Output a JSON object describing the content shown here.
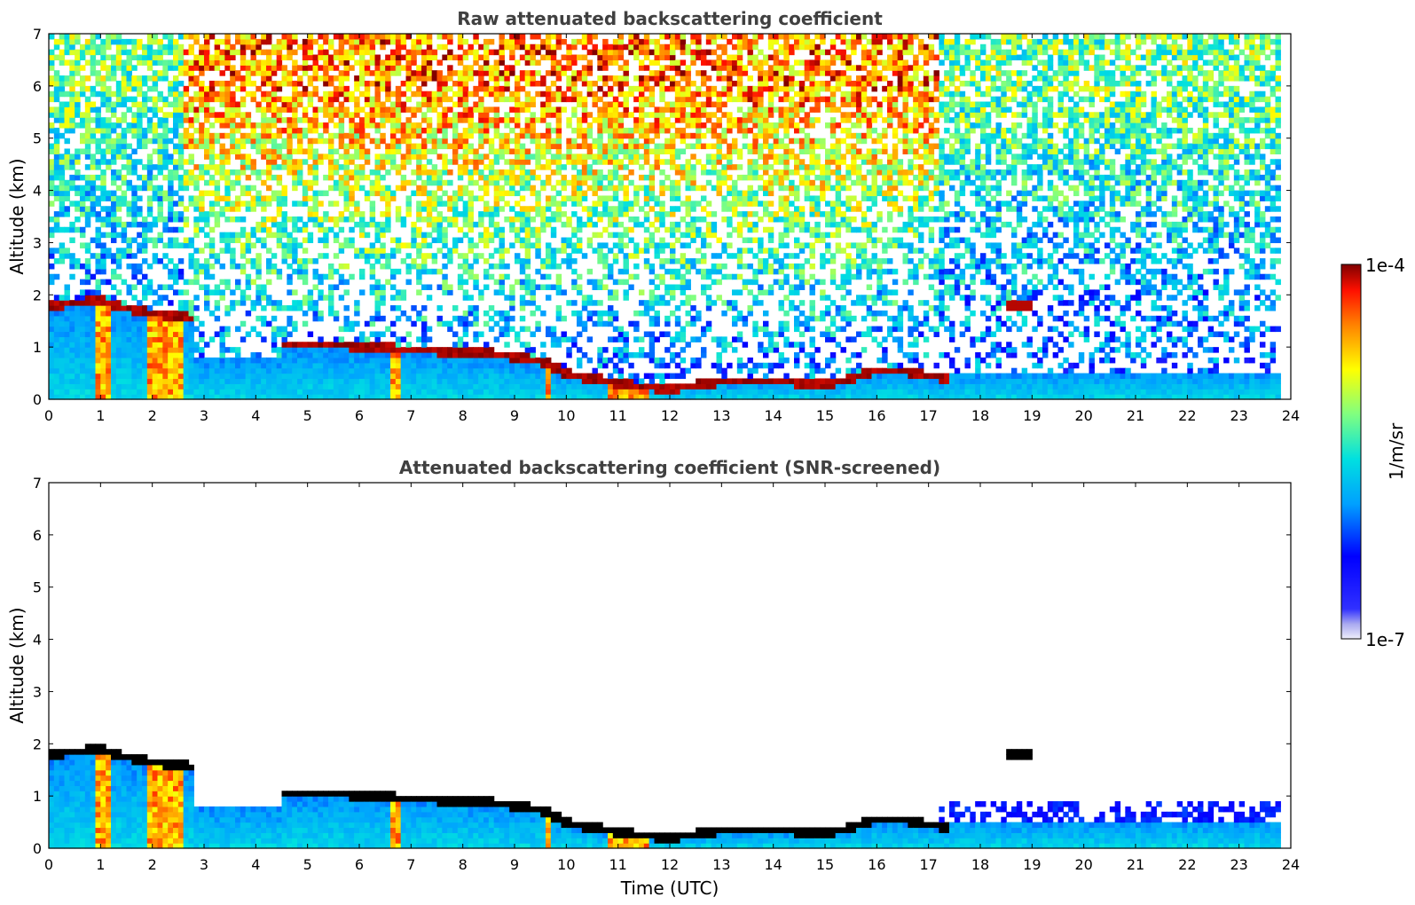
{
  "chart_data": [
    {
      "type": "heatmap",
      "title": "Raw attenuated backscattering coefficient",
      "xlabel": "",
      "ylabel": "Altitude (km)",
      "xlim": [
        0,
        24
      ],
      "ylim": [
        0,
        7
      ],
      "xticks": [
        "0",
        "1",
        "2",
        "3",
        "4",
        "5",
        "6",
        "7",
        "8",
        "9",
        "10",
        "11",
        "12",
        "13",
        "14",
        "15",
        "16",
        "17",
        "18",
        "19",
        "20",
        "21",
        "22",
        "23",
        "24"
      ],
      "yticks": [
        "0",
        "1",
        "2",
        "3",
        "4",
        "5",
        "6",
        "7"
      ],
      "data_end_time": 23.8,
      "cloud_layer": [
        [
          0,
          1.8
        ],
        [
          1.0,
          1.9
        ],
        [
          1.5,
          1.75
        ],
        [
          2.0,
          1.65
        ],
        [
          2.5,
          1.6
        ],
        [
          2.8,
          1.55
        ],
        [
          4.5,
          1.05
        ],
        [
          5.5,
          1.05
        ],
        [
          6.5,
          0.98
        ],
        [
          7.5,
          0.93
        ],
        [
          8.5,
          0.88
        ],
        [
          9.5,
          0.75
        ],
        [
          10.0,
          0.5
        ],
        [
          11.0,
          0.3
        ],
        [
          12.0,
          0.2
        ],
        [
          13.0,
          0.35
        ],
        [
          14.0,
          0.35
        ],
        [
          15.0,
          0.3
        ],
        [
          15.5,
          0.4
        ],
        [
          16.0,
          0.55
        ],
        [
          16.5,
          0.55
        ],
        [
          17.0,
          0.45
        ],
        [
          17.4,
          0.4
        ]
      ],
      "elevated_cloud": {
        "time": [
          18.5,
          19.0
        ],
        "altitude_km": 1.8
      }
    },
    {
      "type": "heatmap",
      "title": "Attenuated backscattering coefficient (SNR-screened)",
      "xlabel": "Time (UTC)",
      "ylabel": "Altitude (km)",
      "xlim": [
        0,
        24
      ],
      "ylim": [
        0,
        7
      ],
      "xticks": [
        "0",
        "1",
        "2",
        "3",
        "4",
        "5",
        "6",
        "7",
        "8",
        "9",
        "10",
        "11",
        "12",
        "13",
        "14",
        "15",
        "16",
        "17",
        "18",
        "19",
        "20",
        "21",
        "22",
        "23",
        "24"
      ],
      "yticks": [
        "0",
        "1",
        "2",
        "3",
        "4",
        "5",
        "6",
        "7"
      ],
      "data_end_time": 23.8
    }
  ],
  "colorbar": {
    "label": "1/m/sr",
    "max_label": "1e-4",
    "min_label": "1e-7",
    "scale": "log",
    "colormap": "jet",
    "colors": [
      "#e8e8f8",
      "#0000ff",
      "#00a0ff",
      "#00e0e0",
      "#80ff80",
      "#ffff00",
      "#ff8000",
      "#ff0000",
      "#800000"
    ]
  }
}
